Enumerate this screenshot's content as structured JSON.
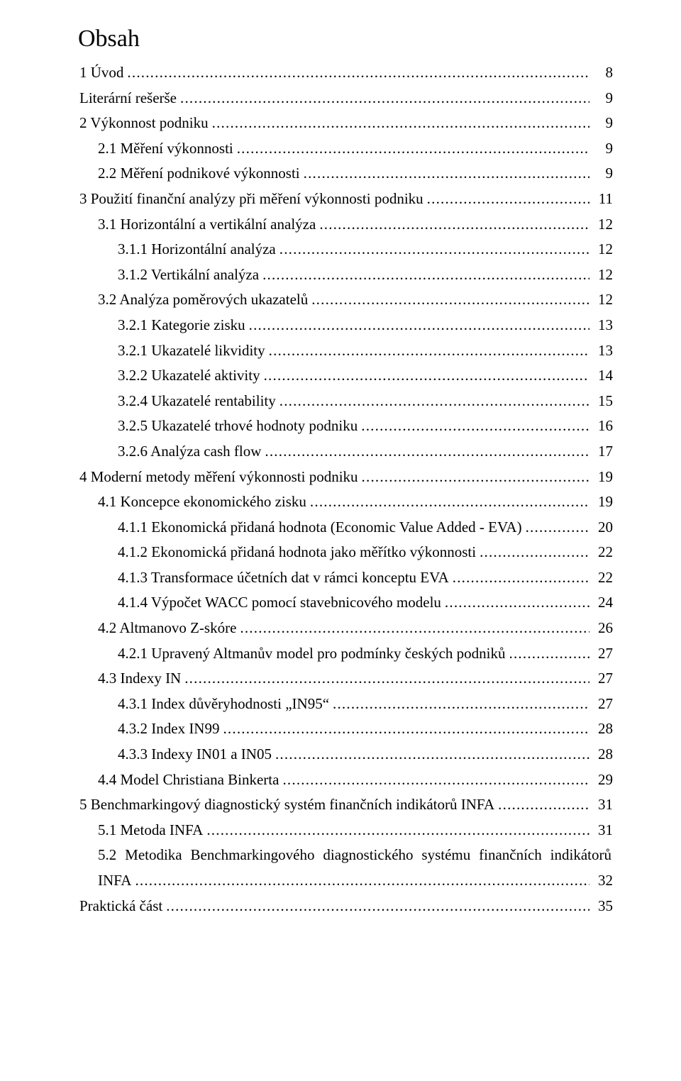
{
  "title": "Obsah",
  "toc": [
    {
      "label": "1 Úvod",
      "page": "8",
      "indent": 0
    },
    {
      "label": "Literární rešerše",
      "page": "9",
      "indent": 0
    },
    {
      "label": "2 Výkonnost podniku",
      "page": "9",
      "indent": 0
    },
    {
      "label": "2.1 Měření výkonnosti",
      "page": "9",
      "indent": 1
    },
    {
      "label": "2.2 Měření podnikové výkonnosti",
      "page": "9",
      "indent": 1
    },
    {
      "label": "3 Použití finanční analýzy při měření výkonnosti podniku",
      "page": "11",
      "indent": 0
    },
    {
      "label": "3.1 Horizontální a vertikální analýza",
      "page": "12",
      "indent": 1
    },
    {
      "label": "3.1.1 Horizontální analýza",
      "page": "12",
      "indent": 2
    },
    {
      "label": "3.1.2 Vertikální analýza",
      "page": "12",
      "indent": 2
    },
    {
      "label": "3.2 Analýza poměrových ukazatelů",
      "page": "12",
      "indent": 1
    },
    {
      "label": "3.2.1 Kategorie zisku",
      "page": "13",
      "indent": 2
    },
    {
      "label": "3.2.1 Ukazatelé likvidity",
      "page": "13",
      "indent": 2
    },
    {
      "label": "3.2.2 Ukazatelé aktivity",
      "page": "14",
      "indent": 2
    },
    {
      "label": "3.2.4 Ukazatelé rentability",
      "page": "15",
      "indent": 2
    },
    {
      "label": "3.2.5 Ukazatelé trhové hodnoty podniku",
      "page": "16",
      "indent": 2
    },
    {
      "label": "3.2.6 Analýza cash flow",
      "page": "17",
      "indent": 2
    },
    {
      "label": "4 Moderní metody měření výkonnosti podniku",
      "page": "19",
      "indent": 0
    },
    {
      "label": "4.1 Koncepce ekonomického zisku",
      "page": "19",
      "indent": 1
    },
    {
      "label": "4.1.1 Ekonomická přidaná hodnota (Economic Value Added - EVA)",
      "page": "20",
      "indent": 2
    },
    {
      "label": "4.1.2 Ekonomická přidaná hodnota jako měřítko výkonnosti",
      "page": "22",
      "indent": 2
    },
    {
      "label": "4.1.3 Transformace účetních dat v rámci konceptu EVA",
      "page": "22",
      "indent": 2
    },
    {
      "label": "4.1.4 Výpočet WACC pomocí stavebnicového modelu",
      "page": "24",
      "indent": 2
    },
    {
      "label": "4.2 Altmanovo Z-skóre",
      "page": "26",
      "indent": 1
    },
    {
      "label": "4.2.1 Upravený Altmanův model pro podmínky českých podniků",
      "page": "27",
      "indent": 2
    },
    {
      "label": "4.3 Indexy IN",
      "page": "27",
      "indent": 1
    },
    {
      "label": "4.3.1 Index důvěryhodnosti „IN95“",
      "page": "27",
      "indent": 2
    },
    {
      "label": "4.3.2 Index IN99",
      "page": "28",
      "indent": 2
    },
    {
      "label": "4.3.3 Indexy IN01 a IN05",
      "page": "28",
      "indent": 2
    },
    {
      "label": "4.4 Model Christiana Binkerta",
      "page": "29",
      "indent": 1
    },
    {
      "label": "5 Benchmarkingový diagnostický systém finančních indikátorů INFA",
      "page": "31",
      "indent": 0
    },
    {
      "label": "5.1 Metoda INFA",
      "page": "31",
      "indent": 1
    },
    {
      "label": "5.2 Metodika Benchmarkingového diagnostického systému finančních indikátorů INFA",
      "page": "32",
      "indent": 1,
      "multiline": true
    },
    {
      "label": "Praktická část",
      "page": "35",
      "indent": 0
    }
  ]
}
